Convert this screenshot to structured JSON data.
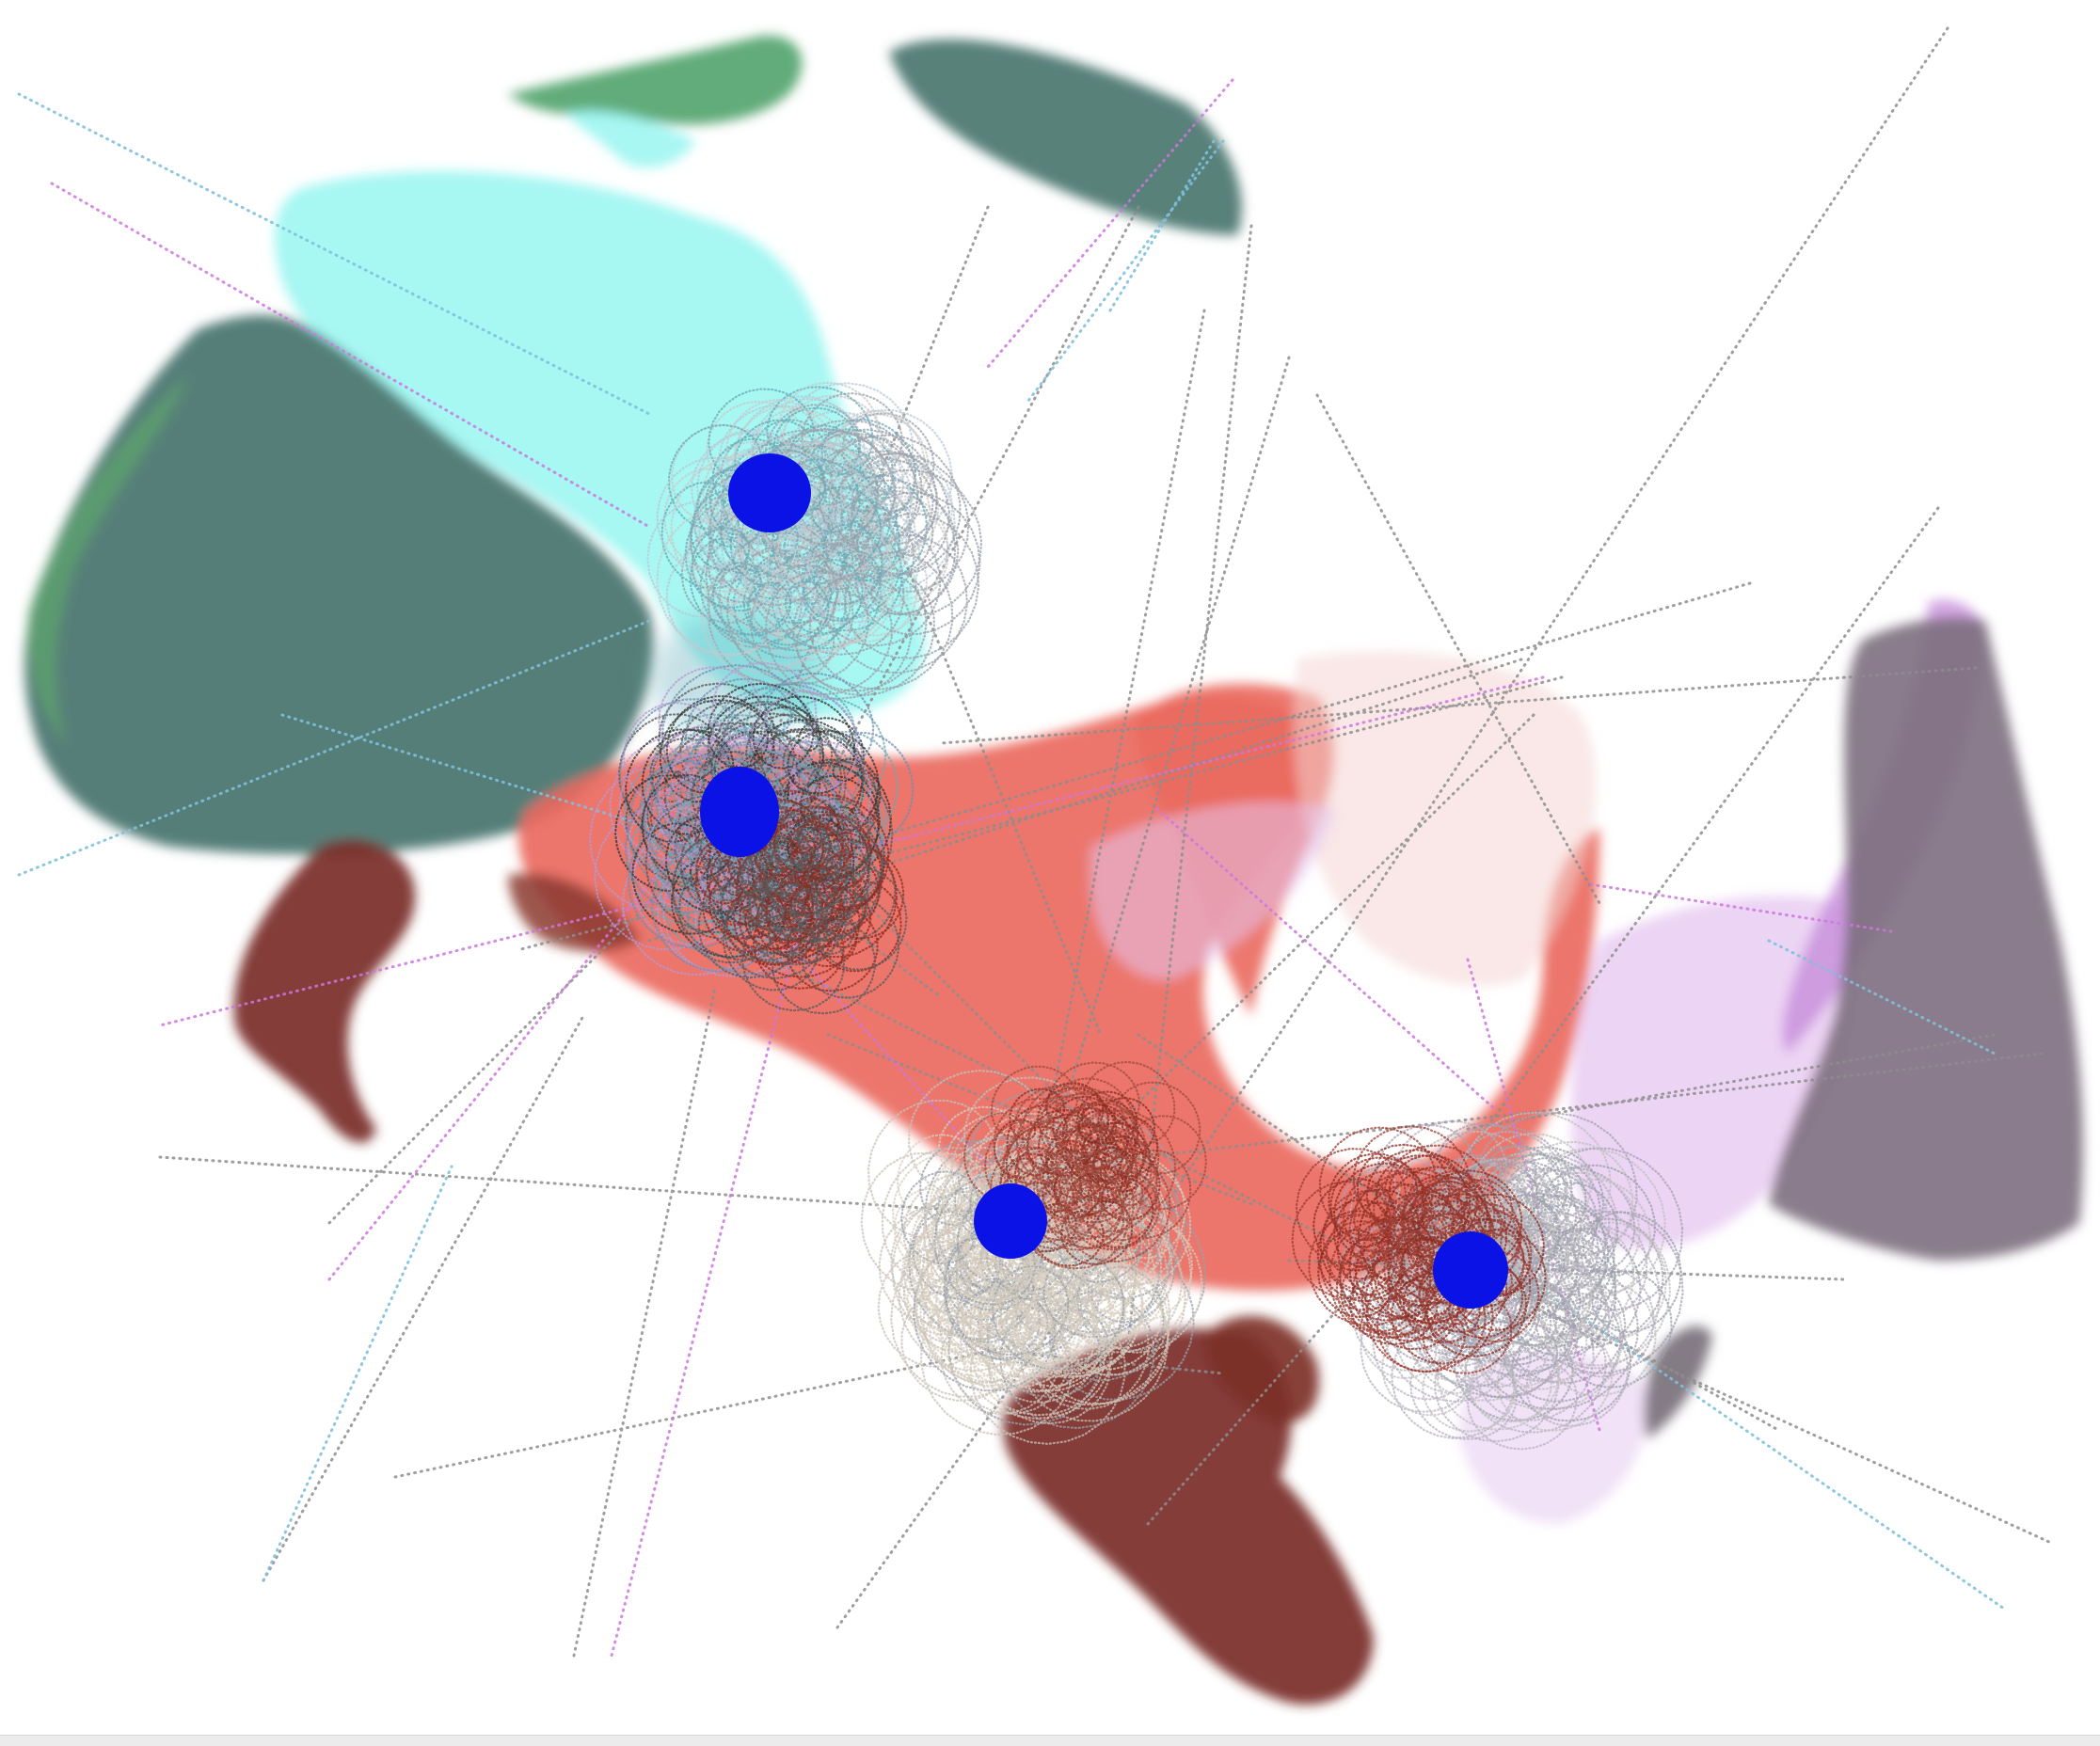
{
  "artwork": {
    "background_color": "#ffffff",
    "bottom_strip_color": "#ececec",
    "palette": {
      "dark_teal": "#4f7a72",
      "green_edge": "#5fae6a",
      "cyan": "#9ff6f2",
      "salmon": "#ea6a5e",
      "dark_red": "#7a2d26",
      "lavender": "#e6c6f0",
      "violet": "#b87ad0",
      "gray_purple": "#7d6f7f",
      "blue_node": "#0a12e6",
      "scribble_gray": "#9aa0aa",
      "scribble_cream": "#d9d0c2",
      "scribble_teal": "#6aa8b4",
      "scribble_dark": "#333333",
      "scribble_redbrown": "#8a2c22",
      "dotted_gray": "#8d8d8d",
      "dotted_purple": "#cc77dd",
      "dotted_lightblue": "#80c0dc"
    },
    "node_count": 4
  }
}
